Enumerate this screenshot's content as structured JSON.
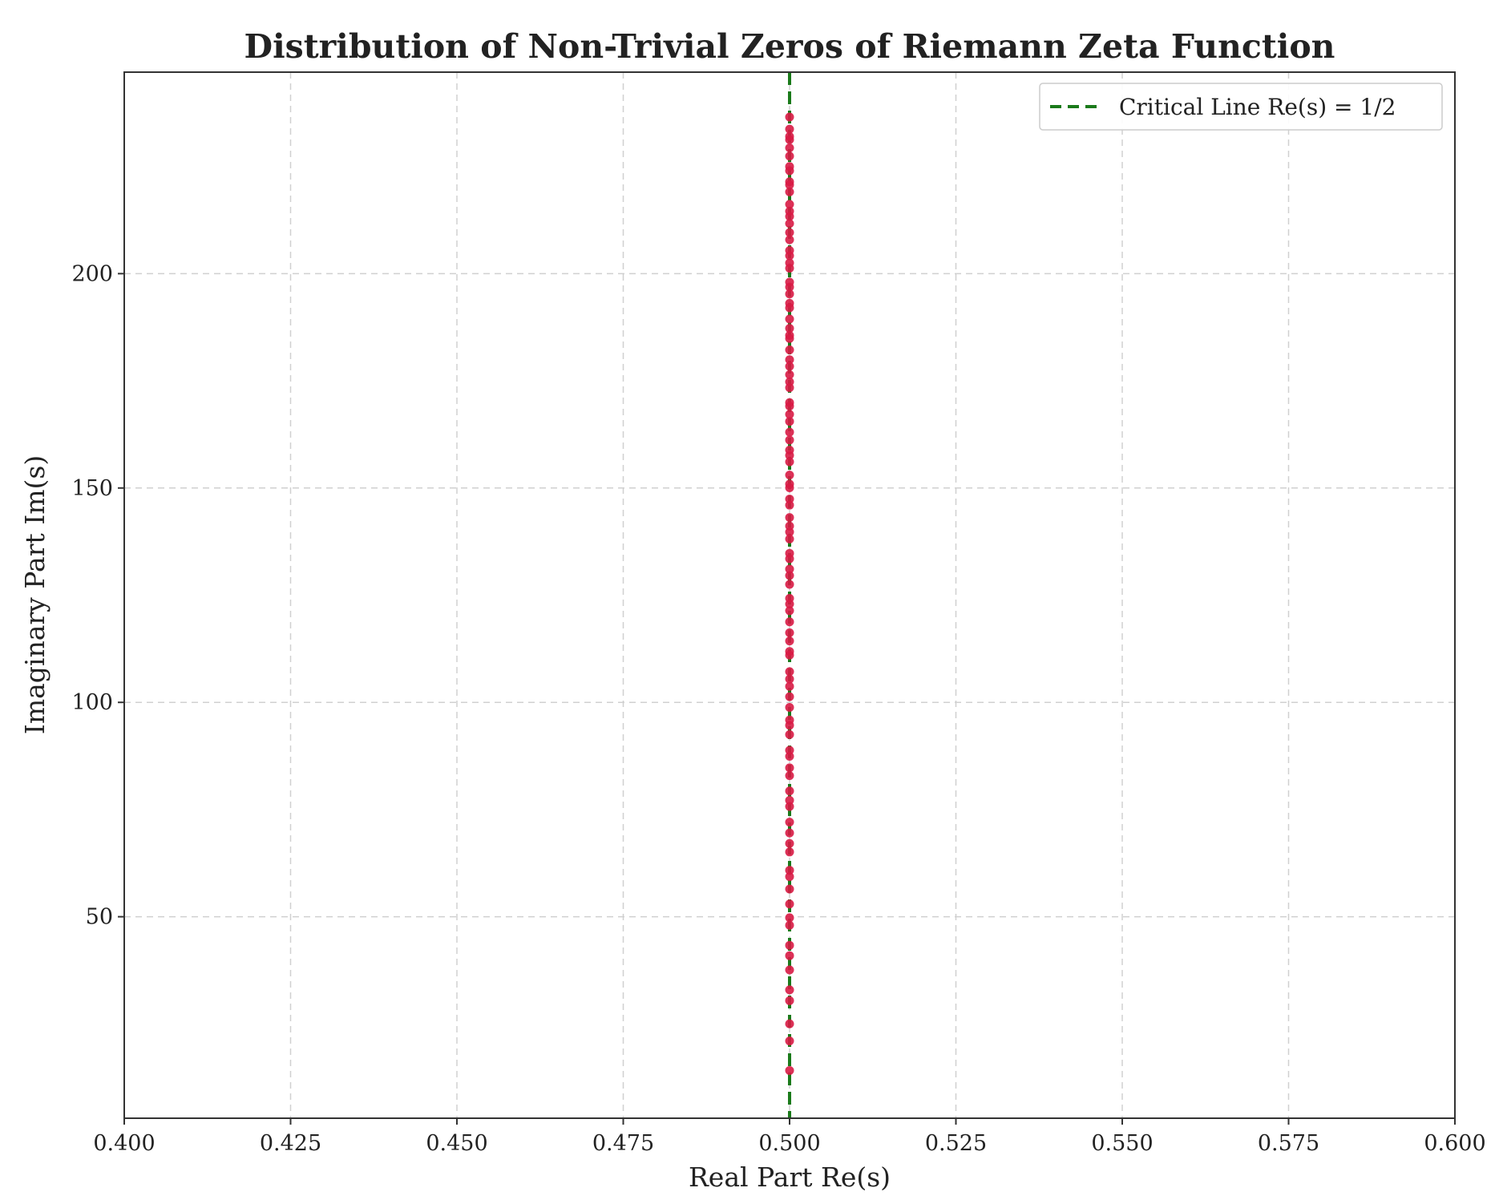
{
  "chart_data": {
    "type": "scatter",
    "title": "Distribution of Non-Trivial Zeros of Riemann Zeta Function",
    "xlabel": "Real Part Re(s)",
    "ylabel": "Imaginary Part Im(s)",
    "xlim": [
      0.4,
      0.6
    ],
    "ylim": [
      3,
      247
    ],
    "xticks": [
      "0.400",
      "0.425",
      "0.450",
      "0.475",
      "0.500",
      "0.525",
      "0.550",
      "0.575",
      "0.600"
    ],
    "yticks": [
      "50",
      "100",
      "150",
      "200"
    ],
    "grid": true,
    "legend": {
      "placement": "top-right",
      "entries": [
        {
          "label": "Critical Line Re(s) = 1/2",
          "style": "dashed-line"
        }
      ]
    },
    "reference_line": {
      "x": 0.5,
      "label": "Critical Line Re(s) = 1/2",
      "color": "#1a7a1a",
      "style": "dashed"
    },
    "series": [
      {
        "marker_color": "#d81b45",
        "x": 0.5,
        "y": [
          14.134725,
          21.02204,
          25.010858,
          30.424876,
          32.935062,
          37.586178,
          40.918719,
          43.327073,
          48.005151,
          49.773832,
          52.970321,
          56.446248,
          59.347044,
          60.831779,
          65.112544,
          67.079811,
          69.546402,
          72.067158,
          75.704691,
          77.14484,
          79.337375,
          82.910381,
          84.735493,
          87.425275,
          88.809111,
          92.491899,
          94.651344,
          95.870634,
          98.831194,
          101.317851,
          103.725538,
          105.446623,
          107.168611,
          111.029536,
          111.874659,
          114.320221,
          116.22668,
          118.790783,
          121.370125,
          122.946829,
          124.256819,
          127.516684,
          129.578704,
          131.087689,
          133.497737,
          134.75651,
          138.116042,
          139.736209,
          141.123707,
          143.111846,
          146.000982,
          147.422765,
          150.05352,
          150.925258,
          153.024694,
          156.112909,
          157.597592,
          158.849988,
          161.188964,
          163.030709,
          165.537069,
          167.18444,
          169.094515,
          169.911977,
          173.411537,
          174.754192,
          176.441434,
          178.377408,
          179.916484,
          182.207078,
          184.874468,
          185.598784,
          187.228922,
          189.416159,
          192.026656,
          193.079727,
          195.265397,
          196.876482,
          198.01531,
          201.264752,
          202.493595,
          204.189672,
          205.394697,
          207.906259,
          209.57651,
          211.690863,
          213.347919,
          214.547045,
          216.169539,
          219.067596,
          220.714919,
          221.430706,
          224.007,
          224.983325,
          227.421444,
          229.337413,
          231.250189,
          231.987235,
          233.693404,
          236.52423
        ]
      }
    ]
  }
}
